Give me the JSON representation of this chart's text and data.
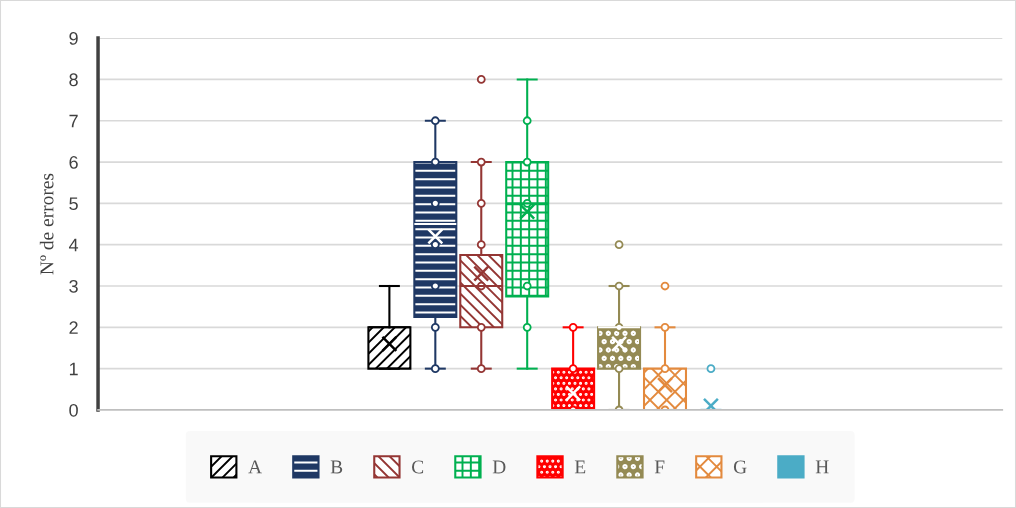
{
  "chart_data": {
    "type": "box",
    "ylabel": "Nº de errores",
    "categories": [
      null
    ],
    "ylim": [
      0,
      9
    ],
    "yticks": [
      0,
      1,
      2,
      3,
      4,
      5,
      6,
      7,
      8,
      9
    ],
    "grid": "y",
    "legend": "bottom",
    "tick_labels": "y",
    "series": [
      {
        "name": "A",
        "color": "#000000",
        "boxes": [
          {
            "low": 1,
            "q1": 1,
            "median": 2,
            "q3": 2,
            "high": 3,
            "mean": 1.6
          }
        ]
      },
      {
        "name": "B",
        "color": "#1f3864",
        "boxes": [
          {
            "low": 1,
            "q1": 2.25,
            "median": 4.5,
            "q3": 6,
            "high": 7,
            "mean": 4.2,
            "outliers": [
              1,
              2,
              3,
              4,
              5,
              6,
              7
            ]
          }
        ]
      },
      {
        "name": "C",
        "color": "#943634",
        "boxes": [
          {
            "low": 1,
            "q1": 2,
            "median": 3,
            "q3": 3.75,
            "high": 6,
            "mean": 3.3,
            "outliers": [
              1,
              2,
              3,
              4,
              5,
              6,
              8
            ]
          }
        ]
      },
      {
        "name": "D",
        "color": "#00b050",
        "boxes": [
          {
            "low": 1,
            "q1": 2.75,
            "median": 5,
            "q3": 6,
            "high": 8,
            "mean": 4.8,
            "outliers": [
              2,
              3,
              5,
              6,
              7
            ]
          }
        ]
      },
      {
        "name": "E",
        "color": "#ff0000",
        "boxes": [
          {
            "low": 0,
            "q1": 0,
            "median": 0,
            "q3": 1,
            "high": 2,
            "mean": 0.4,
            "outliers": [
              0,
              1,
              2
            ]
          }
        ]
      },
      {
        "name": "F",
        "color": "#948a54",
        "boxes": [
          {
            "low": 0,
            "q1": 1,
            "median": 2,
            "q3": 2,
            "high": 3,
            "mean": 1.6,
            "outliers": [
              0,
              1,
              2,
              3,
              4
            ]
          }
        ]
      },
      {
        "name": "G",
        "color": "#e38a3e",
        "boxes": [
          {
            "low": 0,
            "q1": 0,
            "median": 0,
            "q3": 1,
            "high": 2,
            "mean": 0.6,
            "outliers": [
              0,
              1,
              2,
              3
            ]
          }
        ]
      },
      {
        "name": "H",
        "color": "#4bacc6",
        "boxes": [
          {
            "low": 0,
            "q1": 0,
            "median": 0,
            "q3": 0,
            "high": 0,
            "mean": 0.1,
            "outliers": [
              1
            ]
          }
        ]
      }
    ]
  }
}
